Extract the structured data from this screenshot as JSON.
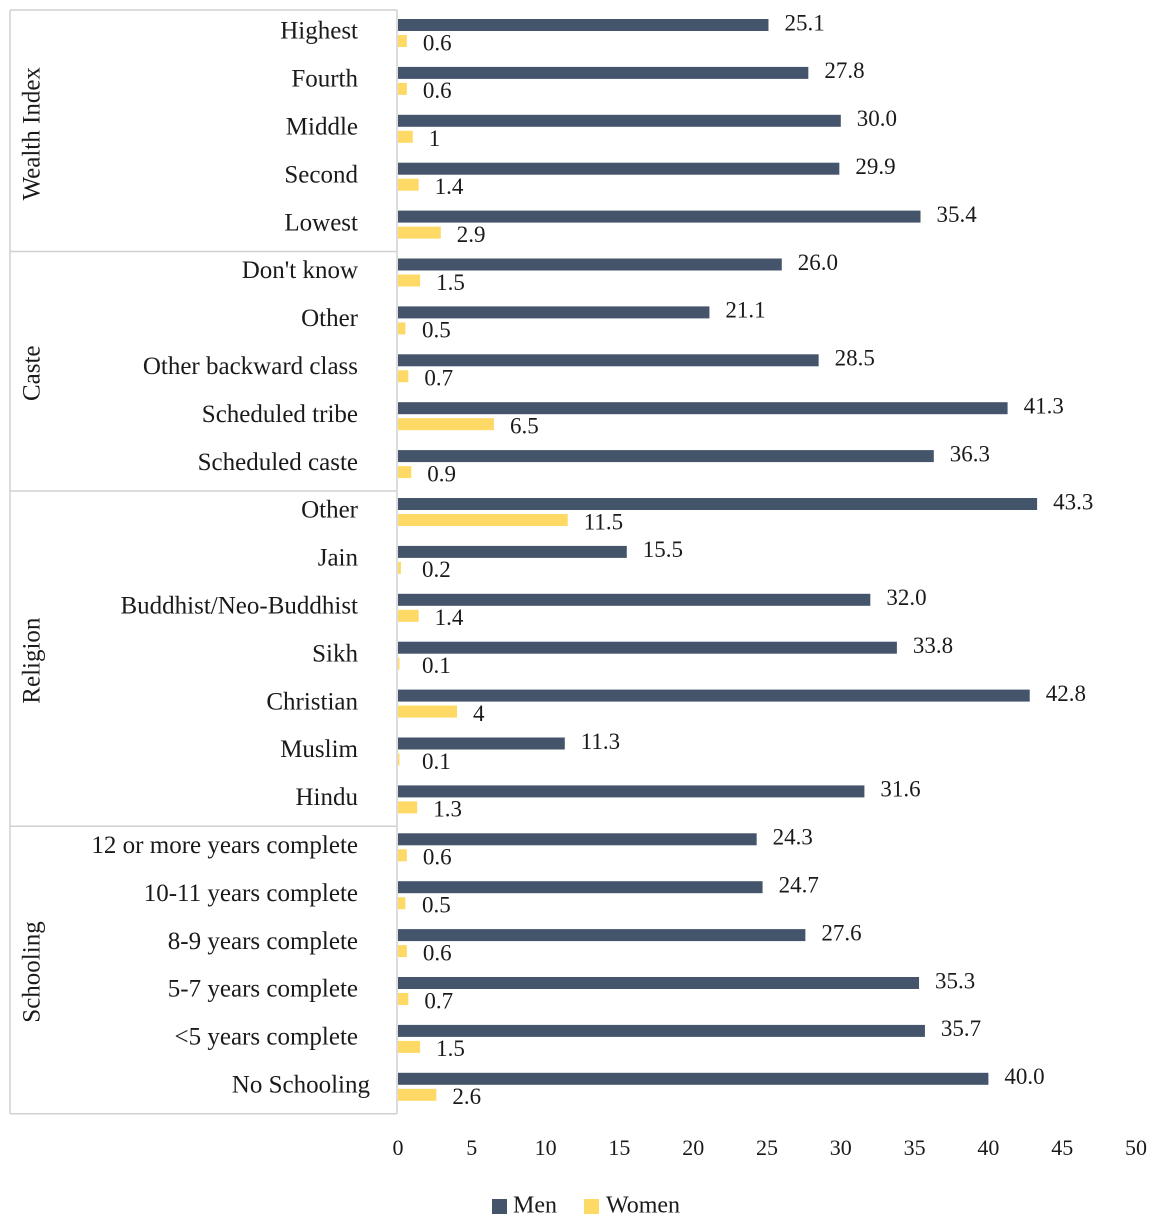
{
  "chart_data": {
    "type": "bar",
    "orientation": "horizontal",
    "title": "",
    "xlabel": "",
    "ylabel": "",
    "xlim": [
      0,
      50
    ],
    "x_ticks": [
      0,
      5,
      10,
      15,
      20,
      25,
      30,
      35,
      40,
      45,
      50
    ],
    "grid": false,
    "legend_position": "bottom",
    "colors": {
      "Men": "#44546a",
      "Women": "#ffd966"
    },
    "groups": [
      {
        "name": "Wealth Index",
        "categories": [
          "Highest",
          "Fourth",
          "Middle",
          "Second",
          "Lowest"
        ]
      },
      {
        "name": "Caste",
        "categories": [
          "Don't know",
          "Other",
          "Other backward class",
          "Scheduled tribe",
          "Scheduled caste"
        ]
      },
      {
        "name": "Religion",
        "categories": [
          "Other",
          "Jain",
          "Buddhist/Neo-Buddhist",
          "Sikh",
          "Christian",
          "Muslim",
          "Hindu"
        ]
      },
      {
        "name": "Schooling",
        "categories": [
          "12 or more years complete",
          "10-11 years complete",
          "8-9 years complete",
          "5-7 years complete",
          "<5 years complete",
          "No Schooling"
        ]
      }
    ],
    "series": [
      {
        "name": "Men",
        "values": [
          25.1,
          27.8,
          30.0,
          29.9,
          35.4,
          26.0,
          21.1,
          28.5,
          41.3,
          36.3,
          43.3,
          15.5,
          32.0,
          33.8,
          42.8,
          11.3,
          31.6,
          24.3,
          24.7,
          27.6,
          35.3,
          35.7,
          40.0
        ],
        "labels": [
          "25.1",
          "27.8",
          "30.0",
          "29.9",
          "35.4",
          "26.0",
          "21.1",
          "28.5",
          "41.3",
          "36.3",
          "43.3",
          "15.5",
          "32.0",
          "33.8",
          "42.8",
          "11.3",
          "31.6",
          "24.3",
          "24.7",
          "27.6",
          "35.3",
          "35.7",
          "40.0"
        ]
      },
      {
        "name": "Women",
        "values": [
          0.6,
          0.6,
          1,
          1.4,
          2.9,
          1.5,
          0.5,
          0.7,
          6.5,
          0.9,
          11.5,
          0.2,
          1.4,
          0.1,
          4,
          0.1,
          1.3,
          0.6,
          0.5,
          0.6,
          0.7,
          1.5,
          2.6
        ],
        "labels": [
          "0.6",
          "0.6",
          "1",
          "1.4",
          "2.9",
          "1.5",
          "0.5",
          "0.7",
          "6.5",
          "0.9",
          "11.5",
          "0.2",
          "1.4",
          "0.1",
          "4",
          "0.1",
          "1.3",
          "0.6",
          "0.5",
          "0.6",
          "0.7",
          "1.5",
          "2.6"
        ]
      }
    ]
  }
}
